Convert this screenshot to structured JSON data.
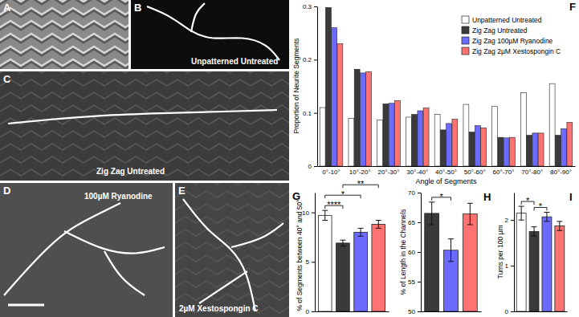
{
  "images": [
    {
      "title": "A"
    },
    {
      "title": "B",
      "label": "Unpatterned Untreated"
    },
    {
      "title": "C",
      "label": "Zig Zag Untreated"
    },
    {
      "title": "D",
      "label": "100µM Ryanodine"
    },
    {
      "title": "E",
      "label": "2µM Xestospongin C"
    }
  ],
  "chart_data": [
    {
      "type": "bar",
      "title": "F",
      "x_label": "Angle of Segments",
      "y_label": "Proportion of Neurite Segments",
      "categories": [
        "0°-10°",
        "10°-20°",
        "20°-30°",
        "30°-40°",
        "40°-50°",
        "50°-60°",
        "60°-70°",
        "70°-80°",
        "80°-90°"
      ],
      "series": [
        {
          "name": "Unpatterned Untreated",
          "color": "#ffffff",
          "values": [
            0.11,
            0.09,
            0.087,
            0.092,
            0.097,
            0.116,
            0.112,
            0.138,
            0.155
          ]
        },
        {
          "name": "Zig Zag Untreated",
          "color": "#3a3a3a",
          "values": [
            0.298,
            0.182,
            0.117,
            0.097,
            0.068,
            0.064,
            0.054,
            0.058,
            0.058
          ]
        },
        {
          "name": "Zig Zag 100µM Ryanodine",
          "color": "#6b6bff",
          "values": [
            0.26,
            0.175,
            0.118,
            0.104,
            0.08,
            0.076,
            0.053,
            0.062,
            0.07
          ]
        },
        {
          "name": "Zig Zag 2µM Xestospongin C",
          "color": "#ff7272",
          "values": [
            0.23,
            0.177,
            0.123,
            0.109,
            0.088,
            0.072,
            0.054,
            0.062,
            0.082
          ]
        }
      ],
      "ylim": [
        0,
        0.3
      ],
      "yticks": [
        0,
        0.1,
        0.2,
        0.3
      ],
      "legend": "upper right"
    },
    {
      "type": "bar",
      "title": "G",
      "y_label": "% of Segments between 40° and 50°",
      "categories": [
        null,
        null,
        null,
        null
      ],
      "values": [
        9.7,
        6.9,
        8.0,
        8.8
      ],
      "errors": [
        0.5,
        0.3,
        0.4,
        0.4
      ],
      "colors": [
        "#ffffff",
        "#3a3a3a",
        "#6b6bff",
        "#ff7272"
      ],
      "ylim": [
        0,
        12
      ],
      "yticks": [
        0,
        5,
        10
      ],
      "significance": [
        {
          "from": 0,
          "to": 2,
          "label": "*"
        },
        {
          "from": 0,
          "to": 1,
          "label": "****"
        },
        {
          "from": 1,
          "to": 3,
          "label": "**"
        }
      ]
    },
    {
      "type": "bar",
      "title": "H",
      "y_label": "% of Length in the Channels",
      "categories": [
        null,
        null,
        null
      ],
      "values": [
        66.5,
        60.3,
        66.4
      ],
      "errors": [
        1.9,
        1.9,
        1.8
      ],
      "colors": [
        "#3a3a3a",
        "#6b6bff",
        "#ff7272"
      ],
      "ylim": [
        50,
        70
      ],
      "yticks": [
        50,
        55,
        60,
        65,
        70
      ],
      "significance": [
        {
          "from": 0,
          "to": 1,
          "label": "*"
        }
      ]
    },
    {
      "type": "bar",
      "title": "I",
      "y_label": "Turns per 100 µm",
      "categories": [
        null,
        null,
        null,
        null
      ],
      "values": [
        2.15,
        1.75,
        2.07,
        1.87
      ],
      "errors": [
        0.15,
        0.1,
        0.1,
        0.1
      ],
      "colors": [
        "#ffffff",
        "#3a3a3a",
        "#6b6bff",
        "#ff7272"
      ],
      "ylim": [
        0,
        2.6
      ],
      "yticks": [
        0,
        1,
        2
      ],
      "significance": [
        {
          "from": 0,
          "to": 1,
          "label": "*"
        },
        {
          "from": 1,
          "to": 2,
          "label": "*"
        }
      ]
    }
  ]
}
